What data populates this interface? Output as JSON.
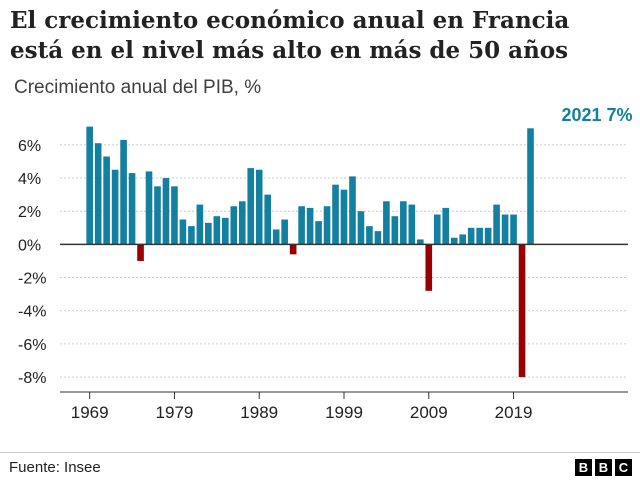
{
  "title": {
    "line1": "El crecimiento económico anual en Francia",
    "line2": "está en el nivel más alto en más de 50 años"
  },
  "subtitle": "Crecimiento anual del PIB, %",
  "source": "Fuente: Insee",
  "brand": {
    "letters": [
      "B",
      "B",
      "C"
    ]
  },
  "colors": {
    "positive": "#1380a1",
    "negative": "#990000",
    "grid": "#cbcbcb",
    "axis": "#333333",
    "text": "#222222",
    "highlight": "#1380a1"
  },
  "chart_data": {
    "type": "bar",
    "title": "",
    "ylabel": "",
    "xlabel": "",
    "x": [
      1969,
      1970,
      1971,
      1972,
      1973,
      1974,
      1975,
      1976,
      1977,
      1978,
      1979,
      1980,
      1981,
      1982,
      1983,
      1984,
      1985,
      1986,
      1987,
      1988,
      1989,
      1990,
      1991,
      1992,
      1993,
      1994,
      1995,
      1996,
      1997,
      1998,
      1999,
      2000,
      2001,
      2002,
      2003,
      2004,
      2005,
      2006,
      2007,
      2008,
      2009,
      2010,
      2011,
      2012,
      2013,
      2014,
      2015,
      2016,
      2017,
      2018,
      2019,
      2020,
      2021
    ],
    "values": [
      7.1,
      6.1,
      5.3,
      4.5,
      6.3,
      4.3,
      -1.0,
      4.4,
      3.5,
      4.0,
      3.5,
      1.5,
      1.1,
      2.4,
      1.3,
      1.7,
      1.6,
      2.3,
      2.6,
      4.6,
      4.5,
      3.0,
      0.9,
      1.5,
      -0.6,
      2.3,
      2.2,
      1.4,
      2.3,
      3.6,
      3.3,
      4.1,
      2.0,
      1.1,
      0.8,
      2.6,
      1.7,
      2.6,
      2.4,
      0.3,
      -2.8,
      1.8,
      2.2,
      0.4,
      0.6,
      1.0,
      1.0,
      1.0,
      2.4,
      1.8,
      1.8,
      -8.0,
      7.0
    ],
    "ylim": [
      -8.9,
      7.5
    ],
    "yticks": [
      6,
      4,
      2,
      0,
      -2,
      -4,
      -6,
      -8
    ],
    "ytick_labels": [
      "6%",
      "4%",
      "2%",
      "0%",
      "-2%",
      "-4%",
      "-6%",
      "-8%"
    ],
    "xticks": [
      1969,
      1979,
      1989,
      1999,
      2009,
      2019
    ],
    "xtick_labels": [
      "1969",
      "1979",
      "1989",
      "1999",
      "2009",
      "2019"
    ],
    "annotation": {
      "year": 2021,
      "text": "2021 7%"
    },
    "grid": true
  }
}
